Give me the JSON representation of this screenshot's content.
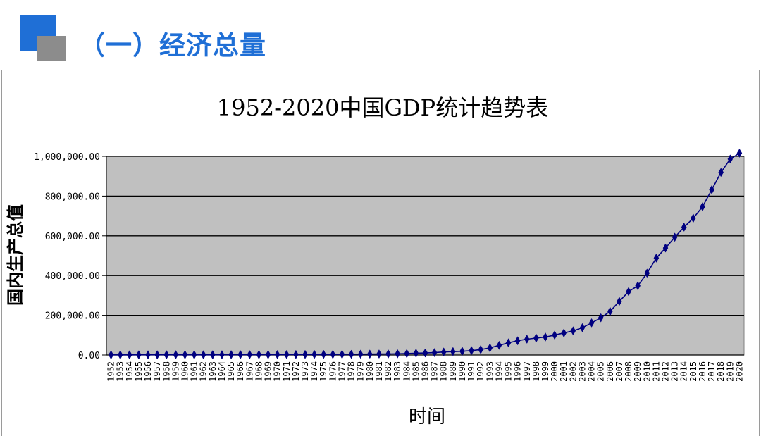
{
  "slide": {
    "title": "（一）经济总量"
  },
  "colors": {
    "accent": "#1f6fd6",
    "gray_square": "#8c8c8c",
    "plot_bg": "#c0c0c0",
    "series": "#000080"
  },
  "chart_data": {
    "type": "line",
    "title": "1952-2020中国GDP统计趋势表",
    "xlabel": "时间",
    "ylabel": "国内生产总值",
    "ylim": [
      0,
      1000000
    ],
    "yticks": [
      0,
      200000,
      400000,
      600000,
      800000,
      1000000
    ],
    "ytick_labels": [
      "0.00",
      "200,000.00",
      "400,000.00",
      "600,000.00",
      "800,000.00",
      "1,000,000.00"
    ],
    "grid": true,
    "legend": "none",
    "x": [
      1952,
      1953,
      1954,
      1955,
      1956,
      1957,
      1958,
      1959,
      1960,
      1961,
      1962,
      1963,
      1964,
      1965,
      1966,
      1967,
      1968,
      1969,
      1970,
      1971,
      1972,
      1973,
      1974,
      1975,
      1976,
      1977,
      1978,
      1979,
      1980,
      1981,
      1982,
      1983,
      1984,
      1985,
      1986,
      1987,
      1988,
      1989,
      1990,
      1991,
      1992,
      1993,
      1994,
      1995,
      1996,
      1997,
      1998,
      1999,
      2000,
      2001,
      2002,
      2003,
      2004,
      2005,
      2006,
      2007,
      2008,
      2009,
      2010,
      2011,
      2012,
      2013,
      2014,
      2015,
      2016,
      2017,
      2018,
      2019,
      2020
    ],
    "series": [
      {
        "values": [
          679,
          824,
          859,
          910,
          1028,
          1068,
          1307,
          1439,
          1457,
          1220,
          1149,
          1233,
          1454,
          1716,
          1868,
          1773,
          1723,
          1937,
          2252,
          2426,
          2518,
          2720,
          2789,
          2997,
          2943,
          3202,
          3679,
          4101,
          4588,
          4936,
          5373,
          6021,
          7279,
          9099,
          10376,
          12175,
          15180,
          17180,
          18873,
          22006,
          27195,
          35673,
          48638,
          61340,
          71814,
          79715,
          85196,
          90564,
          100280,
          110863,
          121717,
          137422,
          161840,
          187319,
          219439,
          270092,
          319245,
          348518,
          412119,
          487940,
          538580,
          592963,
          643563,
          688858,
          746395,
          832036,
          919281,
          986515,
          1015986
        ]
      }
    ]
  }
}
